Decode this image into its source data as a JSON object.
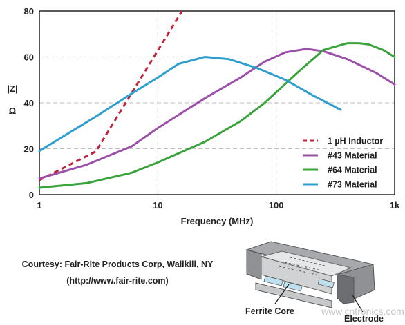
{
  "chart_data": {
    "type": "line",
    "xlabel": "Frequency (MHz)",
    "ylabel_lines": [
      "|Z|",
      "Ω"
    ],
    "x_scale": "log",
    "xlim": [
      1,
      1000
    ],
    "ylim": [
      0,
      80
    ],
    "x_ticks": [
      1,
      10,
      100,
      1000
    ],
    "x_tick_labels": [
      "1",
      "10",
      "100",
      "1k"
    ],
    "y_ticks": [
      0,
      20,
      40,
      60,
      80
    ],
    "y_tick_labels": [
      "0",
      "20",
      "40",
      "60",
      "80"
    ],
    "grid": true,
    "legend_position": "bottom-right",
    "series": [
      {
        "name": "1 µH Inductor",
        "color": "#c0243c",
        "dashed": true,
        "x": [
          1,
          3,
          10,
          16
        ],
        "y": [
          6.3,
          18.8,
          62.8,
          80
        ]
      },
      {
        "name": "#43 Material",
        "color": "#9b4fa8",
        "dashed": false,
        "x": [
          1,
          2.5,
          6,
          10,
          25,
          50,
          80,
          120,
          180,
          250,
          400,
          700,
          1000
        ],
        "y": [
          7,
          13,
          21,
          29,
          42,
          51,
          58,
          62,
          63.5,
          62.5,
          59,
          53,
          48
        ]
      },
      {
        "name": "#64 Material",
        "color": "#3aa33c",
        "dashed": false,
        "x": [
          1,
          2.5,
          6,
          10,
          25,
          50,
          80,
          150,
          250,
          400,
          500,
          600,
          800,
          1000
        ],
        "y": [
          3,
          5,
          9.5,
          14,
          23,
          32,
          40,
          53,
          63,
          66,
          66,
          65.5,
          63,
          60
        ]
      },
      {
        "name": "#73 Material",
        "color": "#2f9fcf",
        "dashed": false,
        "x": [
          1,
          3,
          6,
          10,
          15,
          25,
          40,
          70,
          120,
          200,
          350
        ],
        "y": [
          19,
          34,
          44,
          51,
          57,
          60,
          59,
          55,
          50,
          43.5,
          37
        ]
      }
    ]
  },
  "courtesy": {
    "line1": "Courtesy: Fair-Rite Products Corp, Wallkill, NY",
    "line2": "(http://www.fair-rite.com)"
  },
  "illustration": {
    "ferrite_core_label": "Ferrite Core",
    "electrode_label": "Electrode",
    "colors": {
      "body_gray": "#a7a9ac",
      "dark_gray": "#6d6e71",
      "light_gray": "#d7d8d9",
      "accent_blue": "#bfe0ef"
    }
  },
  "watermark": {
    "text": "www.cntronics.com"
  }
}
